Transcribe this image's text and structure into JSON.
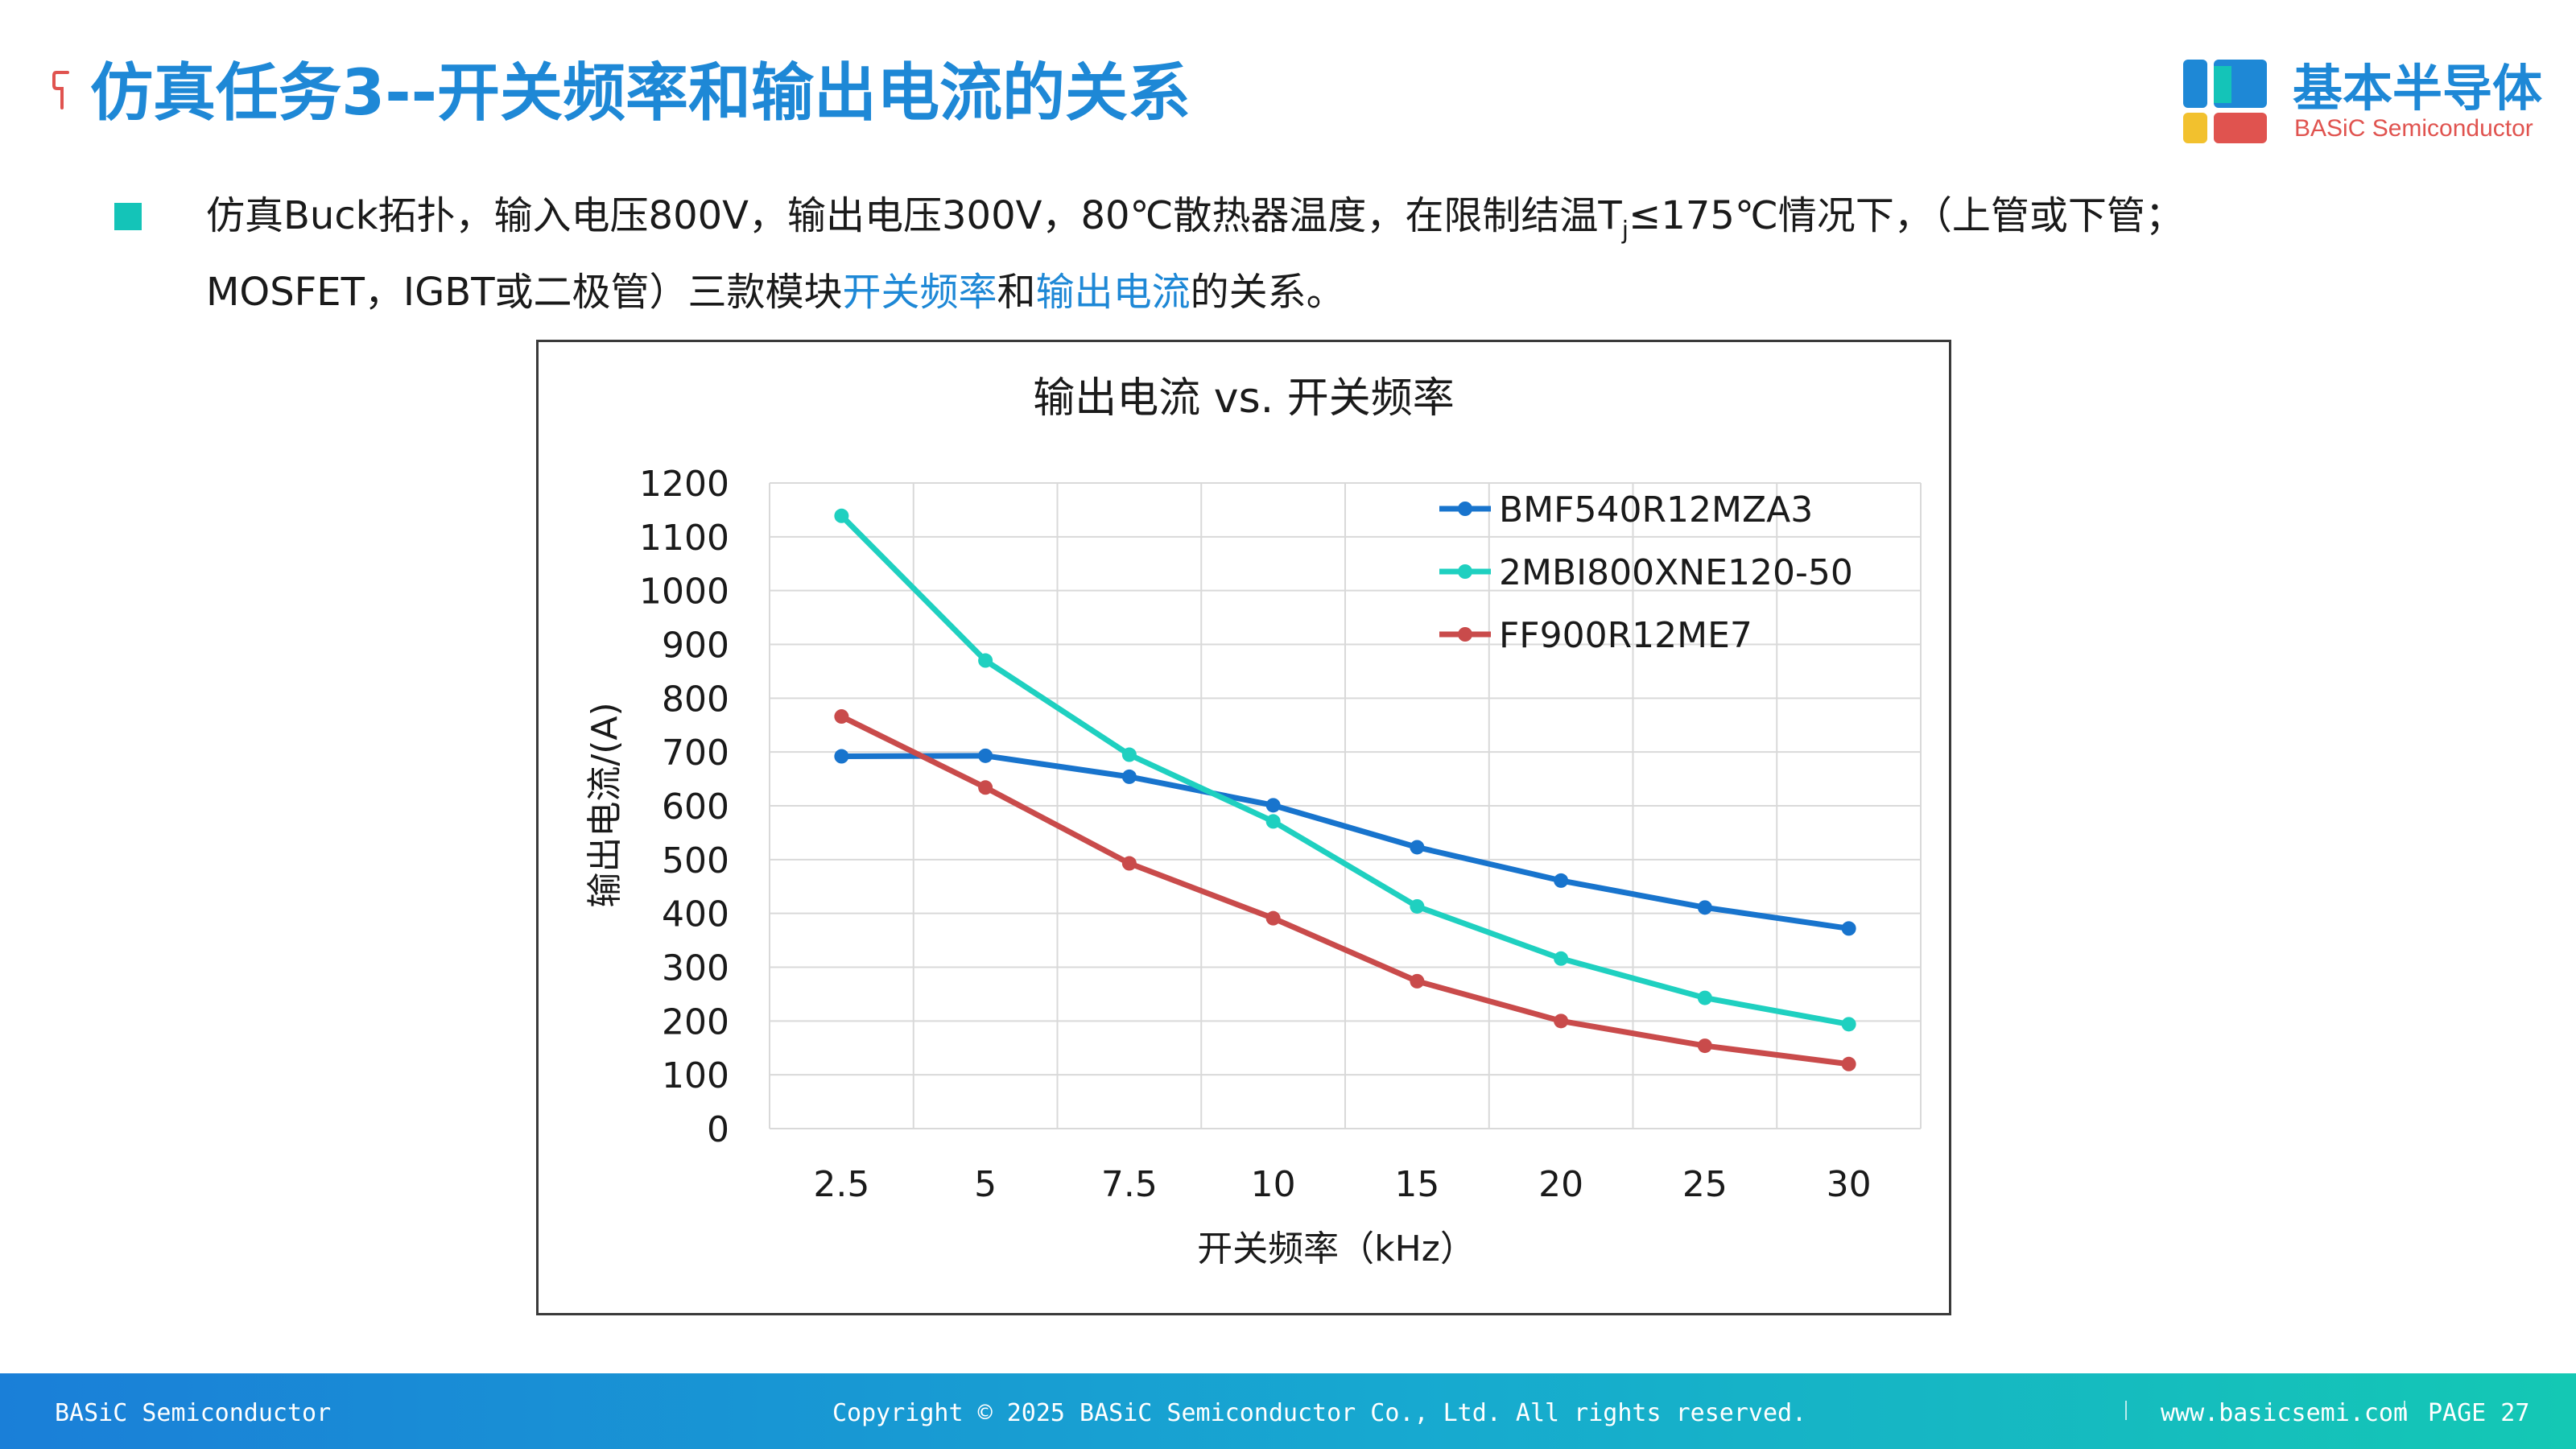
{
  "header": {
    "title": "仿真任务3--开关频率和输出电流的关系",
    "logo_cn": "基本半导体",
    "logo_en": "BASiC Semiconductor"
  },
  "description": {
    "part1": "仿真Buck拓扑，输入电压800V，输出电压300V，80℃散热器温度，在限制结温T",
    "sub": "j",
    "part2": "≤175℃情况下，（上管或下管；MOSFET，IGBT或二极管）三款模块",
    "highlight1": "开关频率",
    "connector": "和",
    "highlight2": "输出电流",
    "part3": "的关系。"
  },
  "colors": {
    "accent": "#1e88d6",
    "bullet": "#14c4b8",
    "series_blue": "#1874cd",
    "series_teal": "#1fd0c0",
    "series_red": "#c94b4b"
  },
  "chart_data": {
    "type": "line",
    "title": "输出电流 vs. 开关频率",
    "xlabel": "开关频率（kHz）",
    "ylabel": "输出电流/(A)",
    "categories": [
      "2.5",
      "5",
      "7.5",
      "10",
      "15",
      "20",
      "25",
      "30"
    ],
    "ylim": [
      0,
      1200
    ],
    "yticks": [
      0,
      100,
      200,
      300,
      400,
      500,
      600,
      700,
      800,
      900,
      1000,
      1100,
      1200
    ],
    "grid": true,
    "legend_position": "top-right",
    "series": [
      {
        "name": "BMF540R12MZA3",
        "color": "#1874cd",
        "values": [
          692,
          693,
          654,
          601,
          523,
          461,
          411,
          372
        ]
      },
      {
        "name": "2MBI800XNE120-50",
        "color": "#1fd0c0",
        "values": [
          1139,
          870,
          695,
          571,
          413,
          316,
          243,
          194
        ]
      },
      {
        "name": "FF900R12ME7",
        "color": "#c94b4b",
        "values": [
          766,
          634,
          493,
          391,
          274,
          200,
          154,
          120
        ]
      }
    ]
  },
  "footer": {
    "left": "BASiC Semiconductor",
    "center": "Copyright © 2025 BASiC Semiconductor Co., Ltd. All rights reserved.",
    "website": "www.basicsemi.com",
    "page": "PAGE 27"
  }
}
